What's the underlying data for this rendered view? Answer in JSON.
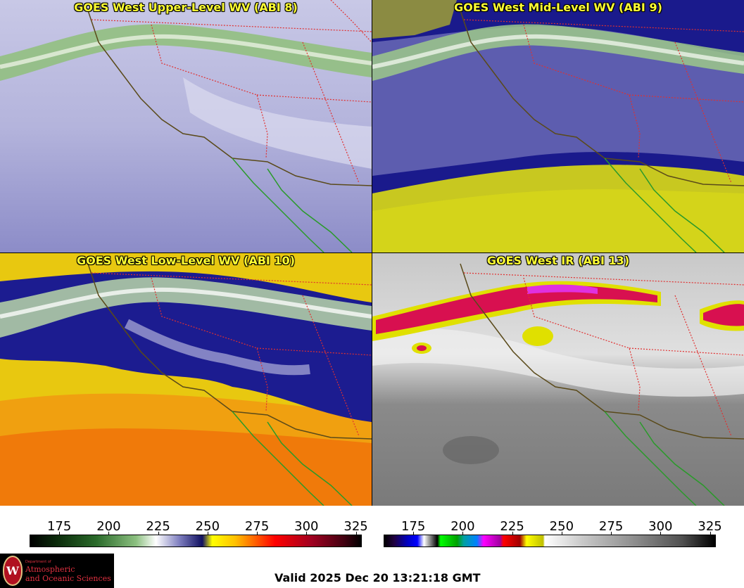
{
  "panels": [
    {
      "title": "GOES West Upper-Level WV (ABI 8)"
    },
    {
      "title": "GOES West Mid-Level WV (ABI 9)"
    },
    {
      "title": "GOES West Low-Level WV (ABI 10)"
    },
    {
      "title": "GOES West IR (ABI 13)"
    }
  ],
  "colorbar_wv": {
    "ticks": [
      "175",
      "200",
      "225",
      "250",
      "275",
      "300",
      "325"
    ],
    "range": [
      160,
      328
    ]
  },
  "colorbar_ir": {
    "ticks": [
      "175",
      "200",
      "225",
      "250",
      "275",
      "300",
      "325"
    ],
    "range": [
      160,
      328
    ]
  },
  "logo": {
    "line1": "Department of",
    "line2": "Atmospheric",
    "line3": "and Oceanic Sciences"
  },
  "valid_time": "Valid 2025 Dec 20 13:21:18 GMT"
}
